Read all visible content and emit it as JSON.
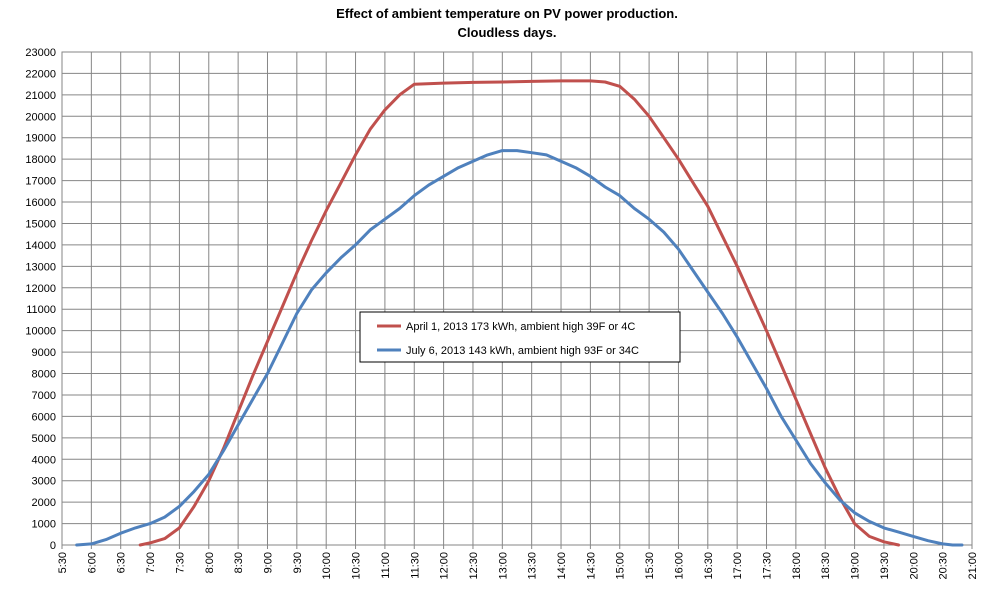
{
  "chart_data": {
    "type": "line",
    "title": "Effect of ambient temperature on PV power production.",
    "subtitle": "Cloudless days.",
    "xlabel": "",
    "ylabel": "",
    "grid": true,
    "legend_position": "center",
    "xlim_hours": [
      5.5,
      21.0
    ],
    "ylim": [
      0,
      23000
    ],
    "y_ticks": [
      0,
      1000,
      2000,
      3000,
      4000,
      5000,
      6000,
      7000,
      8000,
      9000,
      10000,
      11000,
      12000,
      13000,
      14000,
      15000,
      16000,
      17000,
      18000,
      19000,
      20000,
      21000,
      22000,
      23000
    ],
    "x_tick_labels": [
      "5:30",
      "6:00",
      "6:30",
      "7:00",
      "7:30",
      "8:00",
      "8:30",
      "9:00",
      "9:30",
      "10:00",
      "10:30",
      "11:00",
      "11:30",
      "12:00",
      "12:30",
      "13:00",
      "13:30",
      "14:00",
      "14:30",
      "15:00",
      "15:30",
      "16:00",
      "16:30",
      "17:00",
      "17:30",
      "18:00",
      "18:30",
      "19:00",
      "19:30",
      "20:00",
      "20:30",
      "21:00"
    ],
    "series": [
      {
        "name": "April 1, 2013 173 kWh, ambient high 39F or 4C",
        "color": "#c0504d",
        "x": [
          6.83,
          7.0,
          7.25,
          7.5,
          7.75,
          8.0,
          8.25,
          8.5,
          8.75,
          9.0,
          9.25,
          9.5,
          9.75,
          10.0,
          10.25,
          10.5,
          10.75,
          11.0,
          11.25,
          11.5,
          12.0,
          12.5,
          13.0,
          13.5,
          14.0,
          14.5,
          14.75,
          15.0,
          15.25,
          15.5,
          15.75,
          16.0,
          16.25,
          16.5,
          16.75,
          17.0,
          17.25,
          17.5,
          17.75,
          18.0,
          18.25,
          18.5,
          18.75,
          19.0,
          19.25,
          19.5,
          19.75
        ],
        "values": [
          0,
          100,
          300,
          800,
          1800,
          3000,
          4500,
          6200,
          7900,
          9500,
          11100,
          12700,
          14200,
          15600,
          16900,
          18200,
          19400,
          20300,
          21000,
          21500,
          21550,
          21580,
          21600,
          21630,
          21650,
          21650,
          21600,
          21400,
          20800,
          20000,
          19000,
          18000,
          16900,
          15800,
          14400,
          13000,
          11500,
          10000,
          8400,
          6800,
          5200,
          3600,
          2200,
          1000,
          400,
          150,
          0
        ]
      },
      {
        "name": "July 6, 2013  143 kWh, ambient high 93F or 34C",
        "color": "#4f81bd",
        "x": [
          5.75,
          6.0,
          6.25,
          6.5,
          6.75,
          7.0,
          7.25,
          7.5,
          7.75,
          8.0,
          8.25,
          8.5,
          8.75,
          9.0,
          9.25,
          9.5,
          9.75,
          10.0,
          10.25,
          10.5,
          10.75,
          11.0,
          11.25,
          11.5,
          11.75,
          12.0,
          12.25,
          12.5,
          12.75,
          13.0,
          13.25,
          13.5,
          13.75,
          14.0,
          14.25,
          14.5,
          14.75,
          15.0,
          15.25,
          15.5,
          15.75,
          16.0,
          16.25,
          16.5,
          16.75,
          17.0,
          17.25,
          17.5,
          17.75,
          18.0,
          18.25,
          18.5,
          18.75,
          19.0,
          19.25,
          19.5,
          19.75,
          20.0,
          20.25,
          20.5,
          20.67,
          20.83
        ],
        "values": [
          0,
          50,
          250,
          550,
          800,
          1000,
          1300,
          1800,
          2500,
          3300,
          4400,
          5600,
          6800,
          8000,
          9400,
          10800,
          11900,
          12700,
          13400,
          14000,
          14700,
          15200,
          15700,
          16300,
          16800,
          17200,
          17600,
          17900,
          18200,
          18400,
          18400,
          18300,
          18200,
          17900,
          17600,
          17200,
          16700,
          16300,
          15700,
          15200,
          14600,
          13800,
          12800,
          11800,
          10800,
          9700,
          8500,
          7300,
          6000,
          4900,
          3800,
          2900,
          2100,
          1500,
          1100,
          800,
          600,
          400,
          200,
          50,
          0,
          0
        ]
      }
    ]
  }
}
